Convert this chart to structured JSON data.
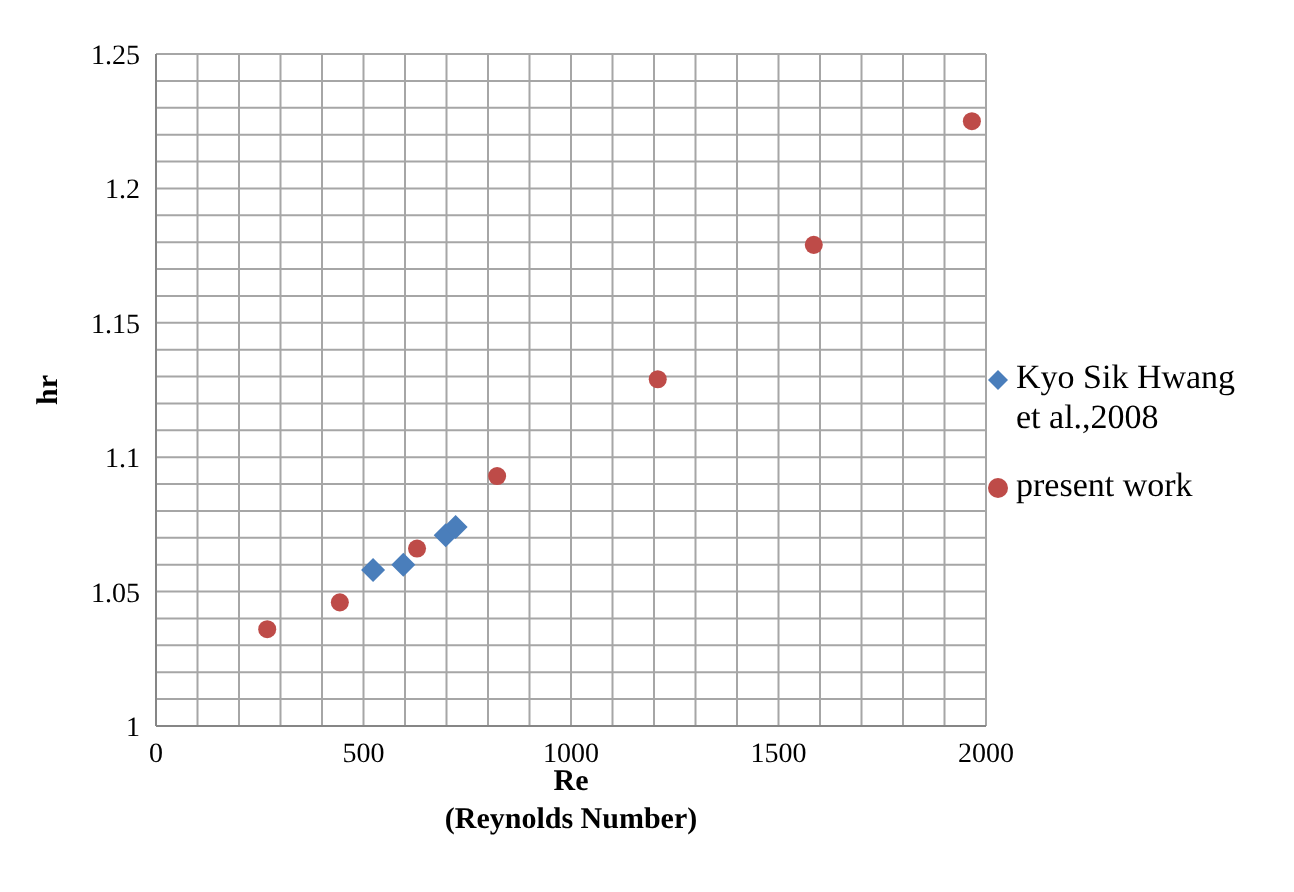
{
  "chart_data": {
    "type": "scatter",
    "xlabel": "Re\n(Reynolds Number)",
    "ylabel": "hr",
    "xlim": [
      0,
      2000
    ],
    "xticks": [
      0,
      {
        "value": 100,
        "label": null
      },
      {
        "value": 200,
        "label": null
      },
      {
        "value": 300,
        "label": null
      },
      {
        "value": 400,
        "label": null
      },
      500,
      {
        "value": 600,
        "label": null
      },
      {
        "value": 700,
        "label": null
      },
      {
        "value": 800,
        "label": null
      },
      {
        "value": 900,
        "label": null
      },
      1000,
      {
        "value": 1100,
        "label": null
      },
      {
        "value": 1200,
        "label": null
      },
      {
        "value": 1300,
        "label": null
      },
      {
        "value": 1400,
        "label": null
      },
      1500,
      {
        "value": 1600,
        "label": null
      },
      {
        "value": 1700,
        "label": null
      },
      {
        "value": 1800,
        "label": null
      },
      {
        "value": 1900,
        "label": null
      },
      2000
    ],
    "ylim": [
      1,
      1.25
    ],
    "yticks": [
      1,
      {
        "value": 1.01,
        "label": null
      },
      {
        "value": 1.02,
        "label": null
      },
      {
        "value": 1.03,
        "label": null
      },
      {
        "value": 1.04,
        "label": null
      },
      1.05,
      {
        "value": 1.06,
        "label": null
      },
      {
        "value": 1.07,
        "label": null
      },
      {
        "value": 1.08,
        "label": null
      },
      {
        "value": 1.09,
        "label": null
      },
      1.1,
      {
        "value": 1.11,
        "label": null
      },
      {
        "value": 1.12,
        "label": null
      },
      {
        "value": 1.13,
        "label": null
      },
      {
        "value": 1.14,
        "label": null
      },
      1.15,
      {
        "value": 1.16,
        "label": null
      },
      {
        "value": 1.17,
        "label": null
      },
      {
        "value": 1.18,
        "label": null
      },
      {
        "value": 1.19,
        "label": null
      },
      1.2,
      {
        "value": 1.21,
        "label": null
      },
      {
        "value": 1.22,
        "label": null
      },
      {
        "value": 1.23,
        "label": null
      },
      {
        "value": 1.24,
        "label": null
      },
      1.25
    ],
    "grid": true,
    "legend": "right",
    "series": [
      {
        "name": "Kyo Sik Hwang et al.,2008",
        "color": "#4a7ebb",
        "marker": "diamond",
        "x": [
          523,
          596,
          698,
          722
        ],
        "values": [
          1.058,
          1.06,
          1.071,
          1.074
        ]
      },
      {
        "name": "present work",
        "color": "#be4b48",
        "marker": "circle",
        "x": [
          268,
          443,
          629,
          822,
          1209,
          1585,
          1966
        ],
        "values": [
          1.036,
          1.046,
          1.066,
          1.093,
          1.129,
          1.179,
          1.225
        ]
      }
    ]
  }
}
